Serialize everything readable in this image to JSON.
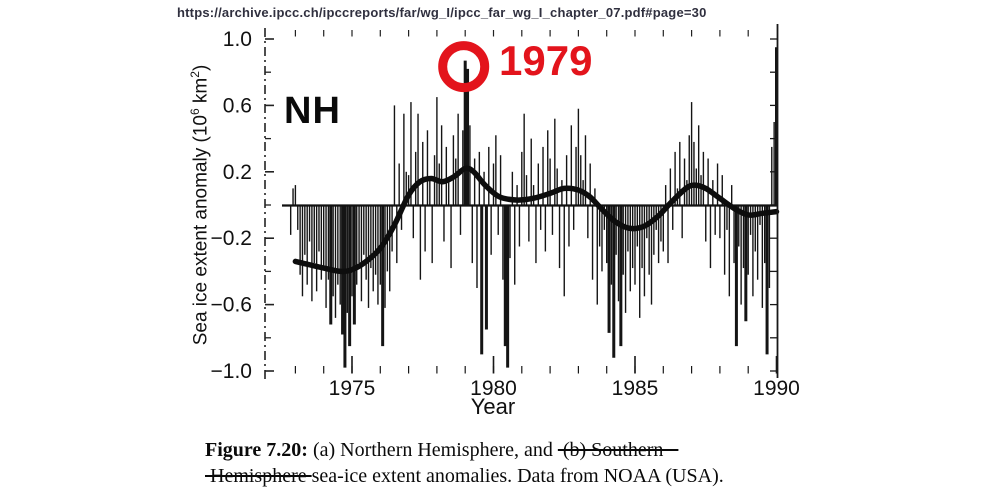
{
  "header": {
    "url": "https://archive.ipcc.ch/ipccreports/far/wg_I/ipcc_far_wg_I_chapter_07.pdf#page=30"
  },
  "chart_data": {
    "type": "bar",
    "title": "Northern Hemisphere sea-ice extent anomalies",
    "xlabel": "Year",
    "ylabel": "Sea ice extent anomaly (10^6 km^2)",
    "ylabel_parts": {
      "prefix": "Sea ice extent anomaly (10",
      "sup1": "6",
      "mid": " km",
      "sup2": "2",
      "suffix": ")"
    },
    "region_label": "NH",
    "xlim": [
      1972,
      1990.1
    ],
    "ylim": [
      -1.0,
      1.0
    ],
    "grid": false,
    "legend_position": "none",
    "x_ticks_major": {
      "values": [
        1975,
        1980,
        1985,
        1990
      ],
      "labels": [
        "1975",
        "1980",
        "1985",
        "1990"
      ]
    },
    "x_minor_tick_years": [
      1973,
      1974,
      1975,
      1976,
      1977,
      1978,
      1979,
      1980,
      1981,
      1982,
      1983,
      1984,
      1985,
      1986,
      1987,
      1988,
      1989
    ],
    "y_ticks": {
      "labeled": [
        [
          1.0,
          "1.0"
        ],
        [
          0.6,
          "0.6"
        ],
        [
          0.2,
          "0.2"
        ],
        [
          -0.2,
          "−0.2"
        ],
        [
          -0.6,
          "−0.6"
        ],
        [
          -1.0,
          "−1.0"
        ]
      ],
      "unlabeled": [
        0.8,
        0.4,
        0.0,
        -0.4,
        -0.8
      ]
    },
    "monthly_bars": {
      "start_year": 1972,
      "start_month": 11,
      "unit": "10^6 km^2",
      "values": [
        -0.18,
        0.1,
        0.12,
        -0.15,
        -0.42,
        -0.55,
        -0.3,
        -0.48,
        -0.22,
        -0.58,
        -0.35,
        -0.52,
        -0.28,
        -0.45,
        -0.38,
        -0.62,
        -0.45,
        -0.72,
        -0.55,
        -0.68,
        -0.48,
        -0.6,
        -0.78,
        -0.98,
        -0.65,
        -0.85,
        -0.55,
        -0.72,
        -0.48,
        -0.35,
        -0.58,
        -0.3,
        -0.45,
        -0.62,
        -0.38,
        -0.52,
        -0.42,
        -0.6,
        -0.48,
        -0.85,
        -0.62,
        -0.4,
        -0.52,
        -0.28,
        0.6,
        -0.35,
        0.25,
        -0.15,
        0.55,
        0.2,
        0.18,
        0.62,
        -0.2,
        0.32,
        0.55,
        -0.45,
        0.38,
        -0.28,
        0.45,
        0.15,
        -0.35,
        0.3,
        0.65,
        0.25,
        0.48,
        -0.22,
        0.35,
        0.15,
        -0.38,
        0.42,
        0.28,
        0.55,
        -0.18,
        0.45,
        0.87,
        0.82,
        0.48,
        -0.35,
        0.28,
        -0.5,
        0.32,
        -0.9,
        0.2,
        -0.75,
        0.35,
        -0.3,
        0.25,
        0.42,
        -0.18,
        0.3,
        -0.45,
        -0.85,
        -0.98,
        -0.32,
        0.2,
        -0.48,
        0.12,
        -0.25,
        0.32,
        0.55,
        0.18,
        -0.22,
        0.4,
        0.12,
        -0.35,
        0.25,
        -0.15,
        0.35,
        -0.28,
        0.45,
        0.28,
        -0.18,
        0.52,
        0.22,
        -0.38,
        0.15,
        -0.55,
        0.3,
        -0.25,
        0.48,
        -0.15,
        0.35,
        0.58,
        0.3,
        0.15,
        0.42,
        -0.2,
        0.25,
        -0.45,
        0.1,
        -0.6,
        -0.25,
        -0.4,
        -0.15,
        -0.35,
        -0.77,
        -0.48,
        -0.92,
        -0.3,
        -0.58,
        -0.85,
        -0.42,
        -0.65,
        -0.28,
        -0.52,
        -0.38,
        -0.48,
        -0.25,
        -0.68,
        -0.38,
        -0.55,
        -0.2,
        -0.42,
        -0.6,
        -0.3,
        -0.15,
        -0.35,
        -0.22,
        -0.28,
        0.12,
        -0.35,
        0.22,
        -0.15,
        0.32,
        0.1,
        0.38,
        -0.2,
        0.28,
        0.15,
        0.42,
        0.62,
        0.38,
        0.22,
        0.48,
        0.18,
        0.32,
        -0.22,
        0.28,
        -0.38,
        0.15,
        -0.18,
        0.25,
        -0.2,
        0.18,
        -0.42,
        -0.15,
        -0.55,
        0.12,
        -0.35,
        -0.85,
        -0.25,
        -0.6,
        -0.38,
        -0.7,
        -0.42,
        -0.18,
        -0.55,
        -0.28,
        -0.45,
        -0.12,
        -0.62,
        -0.35,
        -0.9,
        -0.5,
        0.35,
        0.5,
        0.95
      ]
    },
    "smoothed_series": {
      "name": "smoothed anomaly",
      "points": [
        [
          1973.0,
          -0.34
        ],
        [
          1973.5,
          -0.36
        ],
        [
          1974.0,
          -0.38
        ],
        [
          1974.6,
          -0.4
        ],
        [
          1975.0,
          -0.39
        ],
        [
          1975.5,
          -0.34
        ],
        [
          1976.0,
          -0.26
        ],
        [
          1976.5,
          -0.12
        ],
        [
          1977.0,
          0.06
        ],
        [
          1977.4,
          0.14
        ],
        [
          1977.8,
          0.16
        ],
        [
          1978.2,
          0.14
        ],
        [
          1978.6,
          0.17
        ],
        [
          1979.0,
          0.22
        ],
        [
          1979.3,
          0.2
        ],
        [
          1979.7,
          0.12
        ],
        [
          1980.2,
          0.05
        ],
        [
          1980.8,
          0.03
        ],
        [
          1981.4,
          0.04
        ],
        [
          1982.0,
          0.07
        ],
        [
          1982.5,
          0.1
        ],
        [
          1983.0,
          0.09
        ],
        [
          1983.4,
          0.05
        ],
        [
          1983.8,
          -0.02
        ],
        [
          1984.3,
          -0.1
        ],
        [
          1984.8,
          -0.14
        ],
        [
          1985.3,
          -0.13
        ],
        [
          1985.8,
          -0.07
        ],
        [
          1986.3,
          0.02
        ],
        [
          1986.8,
          0.1
        ],
        [
          1987.1,
          0.12
        ],
        [
          1987.5,
          0.1
        ],
        [
          1988.0,
          0.04
        ],
        [
          1988.5,
          -0.02
        ],
        [
          1989.0,
          -0.06
        ],
        [
          1989.5,
          -0.05
        ],
        [
          1990.0,
          -0.04
        ]
      ]
    }
  },
  "annotations": {
    "circle_label": "1979",
    "circled_year": 1979.0,
    "circled_value": 0.87,
    "accent_color": "#e3141c"
  },
  "caption": {
    "lines": [
      [
        {
          "text": "Figure 7.20:",
          "bold": true
        },
        {
          "text": "  (a)  Northern Hemisphere, and "
        },
        {
          "text": " (b) Southern   ",
          "strike": true
        }
      ],
      [
        {
          "text": " Hemisphere ",
          "strike": true
        },
        {
          "text": "sea-ice extent anomalies.  Data from NOAA (USA)."
        }
      ]
    ]
  }
}
